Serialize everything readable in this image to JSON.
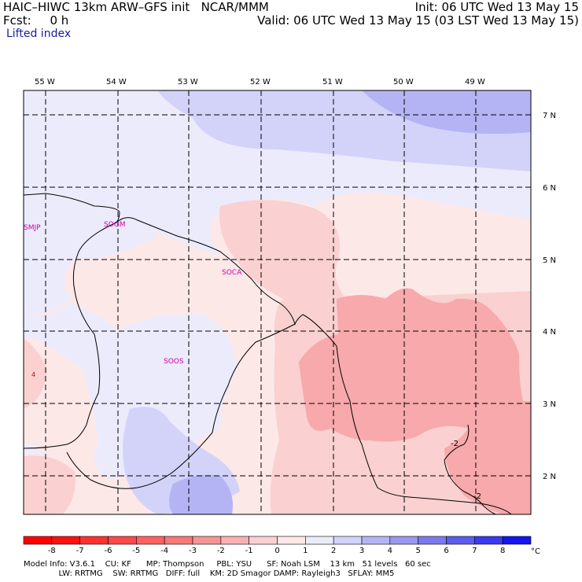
{
  "header": {
    "model_line": "HAIC–HIWC 13km ARW–GFS init   NCAR/MMM",
    "fcst_line": "Fcst:     0 h",
    "init_line": "Init: 06 UTC Wed 13 May 15",
    "valid_line": "Valid: 06 UTC Wed 13 May 15 (03 LST Wed 13 May 15)",
    "field_name": "Lifted index"
  },
  "map": {
    "lon_labels": [
      "55 W",
      "54 W",
      "53 W",
      "52 W",
      "51 W",
      "50 W",
      "49 W"
    ],
    "lat_labels": [
      "7 N",
      "6 N",
      "5 N",
      "4 N",
      "3 N",
      "2 N"
    ],
    "stations": [
      "SMJP",
      "SOGM",
      "SOCA",
      "SOOS"
    ],
    "contour_labels": [
      "-2",
      "-2"
    ],
    "spot_marker": "4"
  },
  "colorbar": {
    "tick_labels": [
      "-8",
      "-7",
      "-6",
      "-5",
      "-4",
      "-3",
      "-2",
      "-1",
      "0",
      "1",
      "2",
      "3",
      "4",
      "5",
      "6",
      "7",
      "8"
    ],
    "unit": "°C",
    "colors": [
      "#ff1010",
      "#ff3030",
      "#ff4848",
      "#ff6060",
      "#f77878",
      "#f59494",
      "#f8b0b0",
      "#fad0d0",
      "#fde8e8",
      "#ebebfc",
      "#d3d3fa",
      "#b4b4f5",
      "#9898f0",
      "#7a7aee",
      "#5c5cee",
      "#3a3aef",
      "#1414f0"
    ]
  },
  "footer": {
    "line1": "Model Info: V3.6.1    CU: KF      MP: Thompson     PBL: YSU      SF: Noah LSM    13 km   51 levels   60 sec",
    "line2": "              LW: RRTMG    SW: RRTMG   DIFF: full    KM: 2D Smagor DAMP: Rayleigh3   SFLAY: MM5"
  }
}
